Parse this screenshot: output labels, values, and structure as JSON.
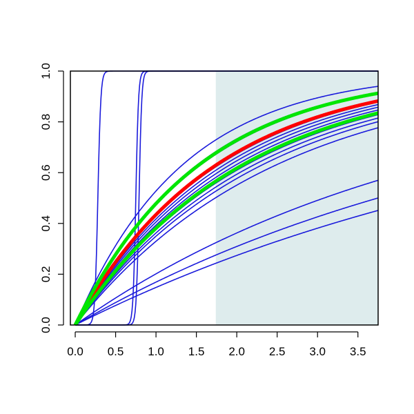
{
  "chart_data": {
    "type": "line",
    "title": "",
    "xlabel": "",
    "ylabel": "",
    "xlim": [
      -0.06,
      3.75
    ],
    "ylim": [
      0.0,
      1.0
    ],
    "x_ticks": [
      "0.0",
      "0.5",
      "1.0",
      "1.5",
      "2.0",
      "2.5",
      "3.0",
      "3.5"
    ],
    "y_ticks": [
      "0.0",
      "0.2",
      "0.4",
      "0.6",
      "0.8",
      "1.0"
    ],
    "grid": false,
    "legend": "none",
    "shaded_region": {
      "x_from": 1.74,
      "x_to": 3.75,
      "color": "#deeced"
    },
    "colors": {
      "curves": "#1a1adb",
      "highlight_red": "#ff0000",
      "highlight_green": "#00e600"
    },
    "series": [
      {
        "kind": "exp",
        "rate": 0.4,
        "color": "#1a1adb"
      },
      {
        "kind": "exp",
        "rate": 0.43,
        "color": "#1a1adb"
      },
      {
        "kind": "exp",
        "rate": 0.45,
        "color": "#1a1adb"
      },
      {
        "kind": "exp",
        "rate": 0.47,
        "color": "#1a1adb"
      },
      {
        "kind": "exp",
        "rate": 0.5,
        "color": "#1a1adb"
      },
      {
        "kind": "exp",
        "rate": 0.52,
        "color": "#1a1adb"
      },
      {
        "kind": "exp",
        "rate": 0.54,
        "color": "#1a1adb"
      },
      {
        "kind": "exp",
        "rate": 0.56,
        "color": "#1a1adb"
      },
      {
        "kind": "exp",
        "rate": 0.64,
        "color": "#1a1adb"
      },
      {
        "kind": "exp",
        "rate": 0.66,
        "color": "#1a1adb"
      },
      {
        "kind": "exp",
        "rate": 0.75,
        "color": "#1a1adb"
      },
      {
        "kind": "exp",
        "rate": 0.16,
        "color": "#1a1adb"
      },
      {
        "kind": "exp",
        "rate": 0.185,
        "color": "#1a1adb"
      },
      {
        "kind": "exp",
        "rate": 0.225,
        "color": "#1a1adb"
      },
      {
        "kind": "sigmoid",
        "center": 0.28,
        "steep": 55,
        "color": "#1a1adb"
      },
      {
        "kind": "sigmoid",
        "center": 0.75,
        "steep": 60,
        "color": "#1a1adb"
      },
      {
        "kind": "sigmoid",
        "center": 0.79,
        "steep": 60,
        "color": "#1a1adb"
      },
      {
        "kind": "exp",
        "rate": 0.57,
        "color": "#ff0000",
        "width": 5
      },
      {
        "kind": "exp",
        "rate": 0.65,
        "color": "#00e600",
        "width": 5
      },
      {
        "kind": "exp",
        "rate": 0.48,
        "color": "#00e600",
        "width": 5
      }
    ]
  }
}
